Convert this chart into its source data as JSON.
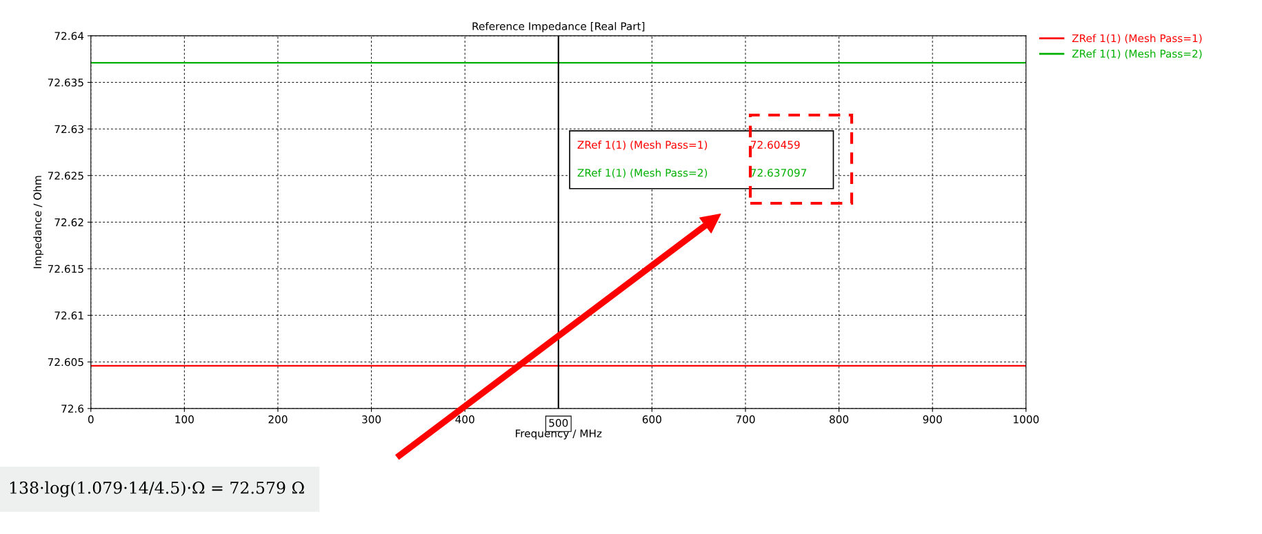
{
  "chart_data": {
    "type": "line",
    "title": "Reference Impedance [Real Part]",
    "xlabel": "Frequency / MHz",
    "ylabel": "Impedance / Ohm",
    "x": [
      0,
      1000
    ],
    "series": [
      {
        "name": "ZRef 1(1) (Mesh Pass=1)",
        "color": "#ff0000",
        "values": [
          72.60459,
          72.60459
        ]
      },
      {
        "name": "ZRef 1(1) (Mesh Pass=2)",
        "color": "#00b000",
        "values": [
          72.637097,
          72.637097
        ]
      }
    ],
    "xlim": [
      0,
      1000
    ],
    "xticks": [
      0,
      100,
      200,
      300,
      400,
      600,
      700,
      800,
      900,
      1000
    ],
    "ylim": [
      72.6,
      72.64
    ],
    "yticks": [
      72.6,
      72.605,
      72.61,
      72.615,
      72.62,
      72.625,
      72.63,
      72.635,
      72.64
    ],
    "ref_lines": [
      {
        "axis": "x",
        "value": 500,
        "label": "500",
        "color": "#000000"
      }
    ],
    "annotations": [
      "72.60459",
      "72.637097",
      "138·log(1.079·14/4.5)·Ω = 72.579 Ω"
    ],
    "grid": true,
    "legend": "top right",
    "marker": "none",
    "line_style": "solid"
  }
}
